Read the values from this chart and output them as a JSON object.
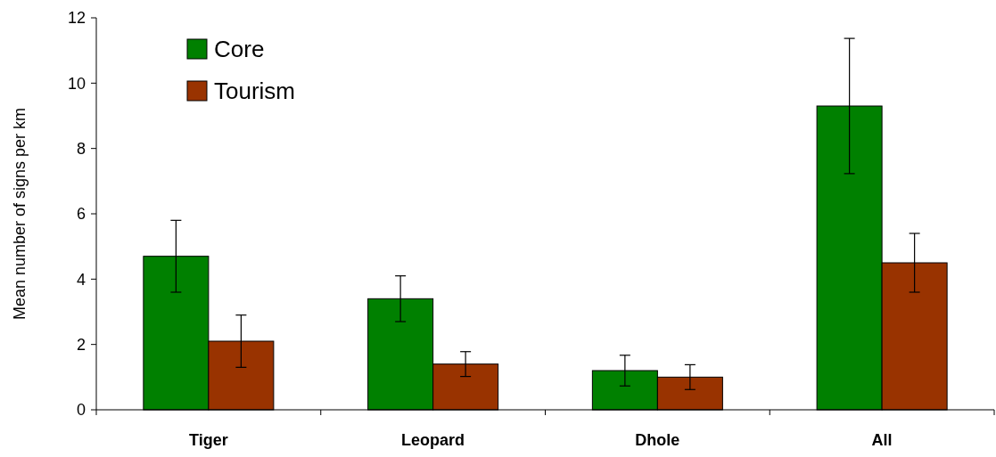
{
  "chart_data": {
    "type": "bar",
    "ylabel": "Mean number of signs per km",
    "categories": [
      "Tiger",
      "Leopard",
      "Dhole",
      "All"
    ],
    "series": [
      {
        "name": "Core",
        "color": "#008000",
        "values": [
          4.7,
          3.4,
          1.2,
          9.3
        ],
        "errors": [
          1.1,
          0.7,
          0.47,
          2.07
        ]
      },
      {
        "name": "Tourism",
        "color": "#993300",
        "values": [
          2.1,
          1.4,
          1.0,
          4.5
        ],
        "errors": [
          0.8,
          0.38,
          0.38,
          0.9
        ]
      }
    ],
    "ylim": [
      0,
      12
    ],
    "yticks": [
      0,
      2,
      4,
      6,
      8,
      10,
      12
    ],
    "legend": "top left",
    "grid": false
  }
}
